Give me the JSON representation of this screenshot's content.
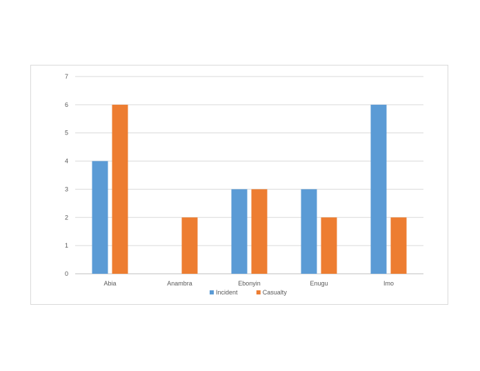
{
  "chart_data": {
    "type": "bar",
    "categories": [
      "Abia",
      "Anambra",
      "Ebonyin",
      "Enugu",
      "Imo"
    ],
    "series": [
      {
        "name": "Incident",
        "values": [
          4,
          0,
          3,
          3,
          6
        ],
        "color": "#5b9bd5"
      },
      {
        "name": "Casualty",
        "values": [
          6,
          2,
          3,
          2,
          2
        ],
        "color": "#ed7d31"
      }
    ],
    "ylim": [
      0,
      7
    ],
    "yticks": [
      "0",
      "1",
      "2",
      "3",
      "4",
      "5",
      "6",
      "7"
    ],
    "grid": true,
    "legend": "bottom",
    "title": "",
    "xlabel": "",
    "ylabel": ""
  }
}
